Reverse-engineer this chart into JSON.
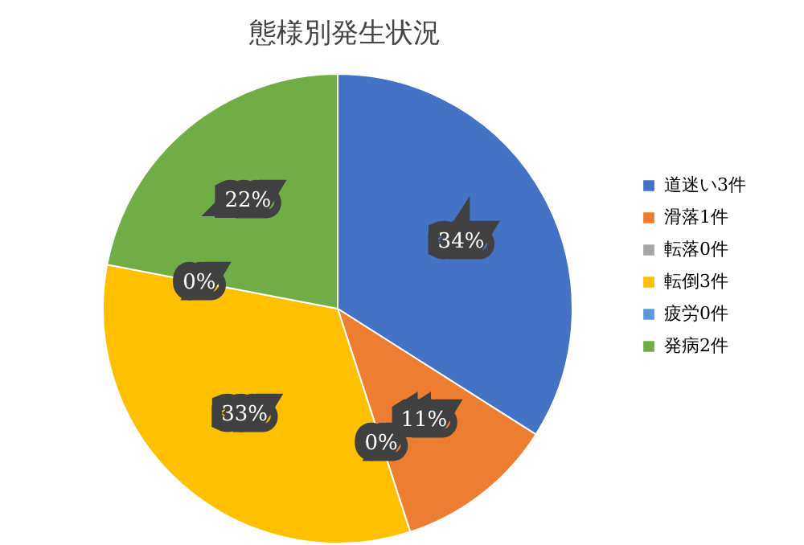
{
  "chart_data": {
    "type": "pie",
    "title": "態様別発生状況",
    "categories": [
      "道迷い3件",
      "滑落1件",
      "転落0件",
      "転倒3件",
      "疲労0件",
      "発病2件"
    ],
    "values": [
      34,
      11,
      0,
      33,
      0,
      22
    ],
    "value_labels": [
      "34%",
      "11%",
      "0%",
      "33%",
      "0%",
      "22%"
    ],
    "colors": [
      "#4472c4",
      "#ed7d31",
      "#a5a5a5",
      "#ffc000",
      "#5b9bd5",
      "#70ad47"
    ],
    "legend": "right"
  }
}
